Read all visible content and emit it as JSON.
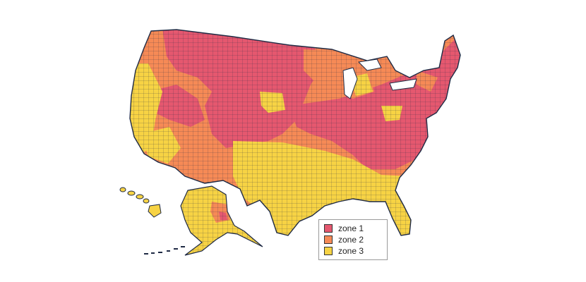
{
  "colors": {
    "zone 1": "#e5586f",
    "zone 2": "#f68a56",
    "zone 3": "#f7d344",
    "border": "#1f2a44"
  },
  "legend": {
    "items": [
      {
        "label": "zone 1",
        "color": "#e5586f"
      },
      {
        "label": "zone 2",
        "color": "#f68a56"
      },
      {
        "label": "zone 3",
        "color": "#f7d344"
      }
    ]
  }
}
